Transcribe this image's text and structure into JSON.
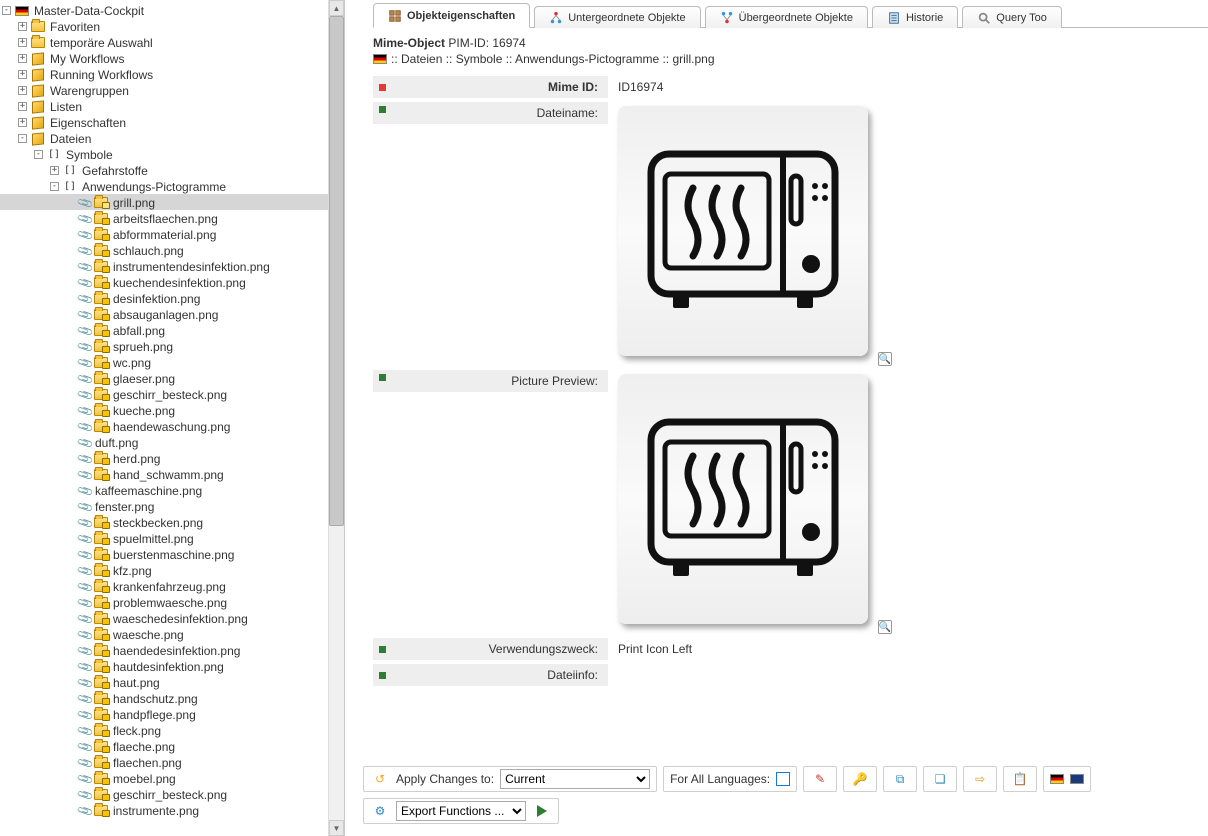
{
  "tree": {
    "root": "Master-Data-Cockpit",
    "top": [
      {
        "label": "Favoriten",
        "icon": "folder",
        "exp": "+"
      },
      {
        "label": "temporäre Auswahl",
        "icon": "folder",
        "exp": "+"
      },
      {
        "label": "My Workflows",
        "icon": "cube",
        "exp": "+"
      },
      {
        "label": "Running Workflows",
        "icon": "cube",
        "exp": "+"
      },
      {
        "label": "Warengruppen",
        "icon": "cube",
        "exp": "+"
      },
      {
        "label": "Listen",
        "icon": "cube",
        "exp": "+"
      },
      {
        "label": "Eigenschaften",
        "icon": "cube",
        "exp": "+"
      },
      {
        "label": "Dateien",
        "icon": "cube",
        "exp": "-"
      }
    ],
    "symboleLabel": "Symbole",
    "gefahrLabel": "Gefahrstoffe",
    "pictoLabel": "Anwendungs-Pictogramme",
    "files": [
      {
        "label": "grill.png",
        "selected": true,
        "lock": true,
        "open": true
      },
      {
        "label": "arbeitsflaechen.png",
        "lock": true
      },
      {
        "label": "abformmaterial.png",
        "lock": true
      },
      {
        "label": "schlauch.png",
        "lock": true
      },
      {
        "label": "instrumentendesinfektion.png",
        "lock": true
      },
      {
        "label": "kuechendesinfektion.png",
        "lock": true
      },
      {
        "label": "desinfektion.png",
        "lock": true
      },
      {
        "label": "absauganlagen.png",
        "lock": true
      },
      {
        "label": "abfall.png",
        "lock": true
      },
      {
        "label": "sprueh.png",
        "lock": true
      },
      {
        "label": "wc.png",
        "lock": true
      },
      {
        "label": "glaeser.png",
        "lock": true
      },
      {
        "label": "geschirr_besteck.png",
        "lock": true
      },
      {
        "label": "kueche.png",
        "lock": true
      },
      {
        "label": "haendewaschung.png",
        "lock": true
      },
      {
        "label": "duft.png",
        "lock": false
      },
      {
        "label": "herd.png",
        "lock": true
      },
      {
        "label": "hand_schwamm.png",
        "lock": true
      },
      {
        "label": "kaffeemaschine.png",
        "lock": false
      },
      {
        "label": "fenster.png",
        "lock": false
      },
      {
        "label": "steckbecken.png",
        "lock": true
      },
      {
        "label": "spuelmittel.png",
        "lock": true
      },
      {
        "label": "buerstenmaschine.png",
        "lock": true
      },
      {
        "label": "kfz.png",
        "lock": true
      },
      {
        "label": "krankenfahrzeug.png",
        "lock": true
      },
      {
        "label": "problemwaesche.png",
        "lock": true
      },
      {
        "label": "waeschedesinfektion.png",
        "lock": true
      },
      {
        "label": "waesche.png",
        "lock": true
      },
      {
        "label": "haendedesinfektion.png",
        "lock": true
      },
      {
        "label": "hautdesinfektion.png",
        "lock": true
      },
      {
        "label": "haut.png",
        "lock": true
      },
      {
        "label": "handschutz.png",
        "lock": true
      },
      {
        "label": "handpflege.png",
        "lock": true
      },
      {
        "label": "fleck.png",
        "lock": true
      },
      {
        "label": "flaeche.png",
        "lock": true
      },
      {
        "label": "flaechen.png",
        "lock": true
      },
      {
        "label": "moebel.png",
        "lock": true
      },
      {
        "label": "geschirr_besteck.png",
        "lock": true
      },
      {
        "label": "instrumente.png",
        "lock": true
      }
    ]
  },
  "tabs": [
    {
      "label": "Objekteigenschaften",
      "active": true
    },
    {
      "label": "Untergeordnete Objekte"
    },
    {
      "label": "Übergeordnete Objekte"
    },
    {
      "label": "Historie"
    },
    {
      "label": "Query Too"
    }
  ],
  "header": {
    "title_prefix": "Mime-Object",
    "title_id": "PIM-ID: 16974",
    "breadcrumb": ":: Dateien :: Symbole :: Anwendungs-Pictogramme :: grill.png"
  },
  "props": {
    "mime_id_label": "Mime ID:",
    "mime_id_value": "ID16974",
    "filename_label": "Dateiname:",
    "preview_label": "Picture Preview:",
    "usage_label": "Verwendungszweck:",
    "usage_value": "Print Icon Left",
    "info_label": "Dateiinfo:"
  },
  "footer": {
    "apply_label": "Apply Changes to:",
    "apply_value": "Current",
    "all_lang_label": "For All Languages:",
    "export_label": "Export Functions ..."
  },
  "colors": {
    "selected_bg": "#d6d6d6",
    "panel_bg": "#eeeeee",
    "marker_red": "#e53935",
    "marker_green": "#2e7d32"
  }
}
